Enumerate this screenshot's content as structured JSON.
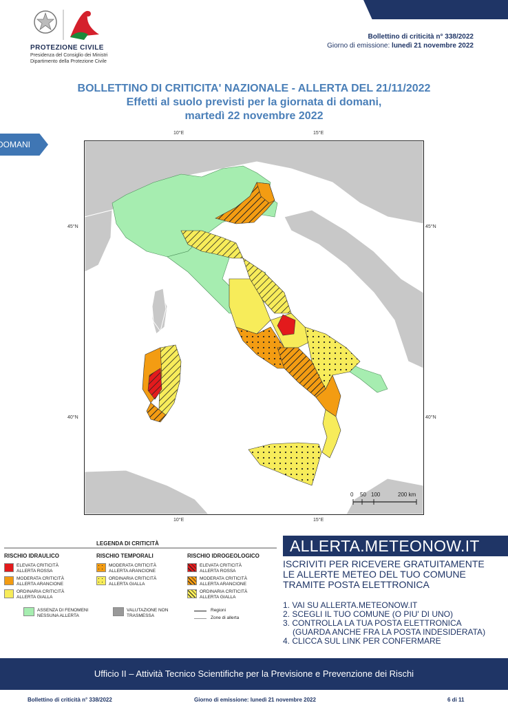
{
  "header": {
    "org_name": "PROTEZIONE CIVILE",
    "org_sub1": "Presidenza del Consiglio dei Ministri",
    "org_sub2": "Dipartimento della Protezione Civile",
    "bulletin_number": "Bollettino di criticità n° 338/2022",
    "issue_label": "Giorno di emissione:",
    "issue_date": "lunedì 21 novembre 2022"
  },
  "title": {
    "line1": "BOLLETTINO DI CRITICITA' NAZIONALE - ALLERTA DEL 21/11/2022",
    "line2": "Effetti al suolo previsti per la giornata di domani,",
    "line3": "martedì 22 novembre 2022"
  },
  "tab": {
    "label": "DOMANI"
  },
  "map": {
    "lon_ticks": [
      "10°E",
      "15°E"
    ],
    "lat_ticks": [
      "45°N",
      "40°N"
    ],
    "scale_labels": [
      "0",
      "50",
      "100",
      "200 km"
    ]
  },
  "legend": {
    "title": "LEGENDA DI CRITICITÀ",
    "col_idraulico": "RISCHIO IDRAULICO",
    "col_temporali": "RISCHIO TEMPORALI",
    "col_idrogeologico": "RISCHIO IDROGEOLOGICO",
    "idraulico": [
      {
        "l1": "ELEVATA CRITICITÀ",
        "l2": "ALLERTA ROSSA",
        "color": "#e31a1c"
      },
      {
        "l1": "MODERATA CRITICITÀ",
        "l2": "ALLERTA ARANCIONE",
        "color": "#f39c12"
      },
      {
        "l1": "ORDINARIA CRITICITÀ",
        "l2": "ALLERTA GIALLA",
        "color": "#f7ec5a"
      }
    ],
    "temporali": [
      {
        "l1": "MODERATA CRITICITÀ",
        "l2": "ALLERTA ARANCIONE",
        "color": "#f39c12"
      },
      {
        "l1": "ORDINARIA CRITICITÀ",
        "l2": "ALLERTA GIALLA",
        "color": "#f7ec5a"
      }
    ],
    "idrogeologico": [
      {
        "l1": "ELEVATA CRITICITÀ",
        "l2": "ALLERTA ROSSA",
        "color": "#e31a1c"
      },
      {
        "l1": "MODERATA CRITICITÀ",
        "l2": "ALLERTA ARANCIONE",
        "color": "#f39c12"
      },
      {
        "l1": "ORDINARIA CRITICITÀ",
        "l2": "ALLERTA GIALLA",
        "color": "#f7ec5a"
      }
    ],
    "assenza_l1": "ASSENZA DI FENOMENI",
    "assenza_l2": "NESSUNA ALLERTA",
    "assenza_color": "#a6edb0",
    "valutazione_l1": "VALUTAZIONE NON",
    "valutazione_l2": "TRASMESSA",
    "valutazione_color": "#999999",
    "regioni": "Regioni",
    "zone": "Zone di allerta"
  },
  "promo": {
    "site": "ALLERTA.METEONOW.IT",
    "sub1": "ISCRIVITI PER RICEVERE GRATUITAMENTE",
    "sub2": "LE ALLERTE METEO DEL TUO COMUNE",
    "sub3": "TRAMITE POSTA ELETTRONICA",
    "step1": "1. VAI SU ALLERTA.METEONOW.IT",
    "step2": "2. SCEGLI IL TUO COMUNE (O PIU' DI UNO)",
    "step3": "3. CONTROLLA LA TUA POSTA ELETTRONICA",
    "step3b": "(GUARDA ANCHE FRA LA POSTA INDESIDERATA)",
    "step4": "4. CLICCA SUL LINK PER CONFERMARE"
  },
  "footer": {
    "office": "Ufficio II – Attività Tecnico Scientifiche per la Previsione e Prevenzione dei Rischi",
    "bulletin": "Bollettino di criticità n° 338/2022",
    "issue": "Giorno di emissione: lunedì 21 novembre 2022",
    "page": "6 di 11"
  },
  "colors": {
    "navy": "#1f3566",
    "title_blue": "#4a7fb8",
    "green": "#a6edb0",
    "yellow": "#f7ec5a",
    "orange": "#f39c12",
    "red": "#e31a1c"
  }
}
